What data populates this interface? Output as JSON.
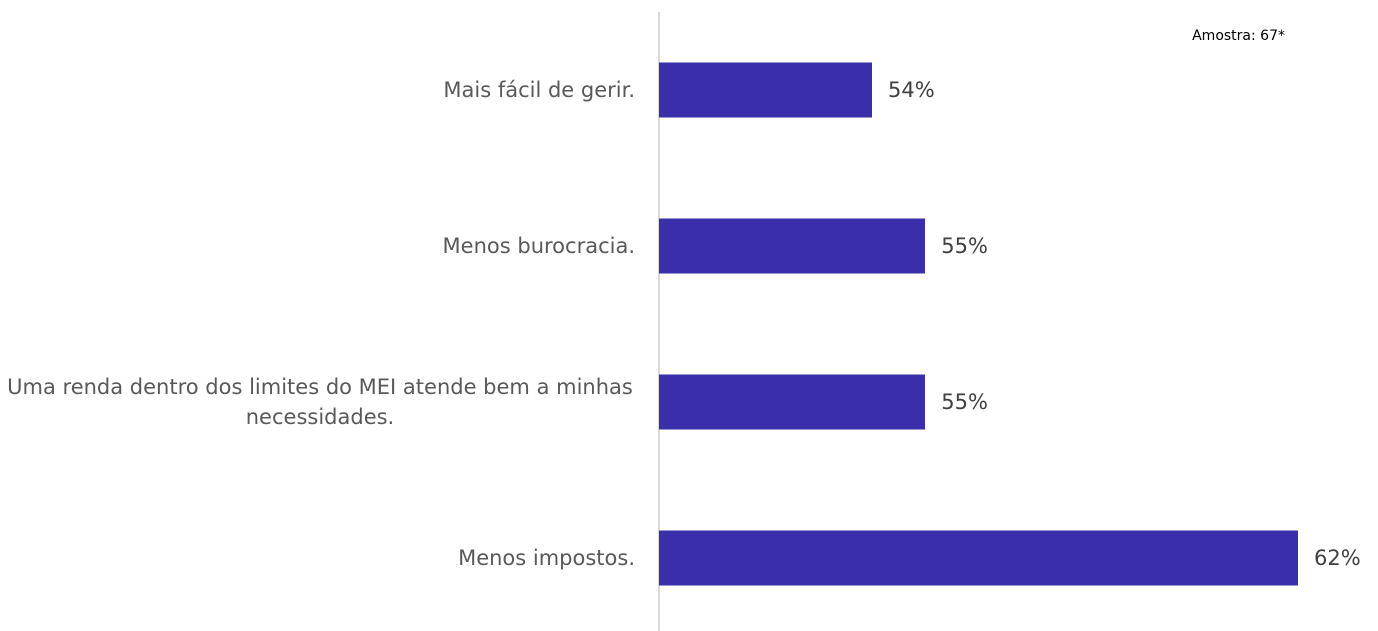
{
  "chart_data": {
    "type": "bar",
    "orientation": "horizontal",
    "annotation": "Amostra: 67*",
    "categories": [
      "Mais fácil de gerir.",
      "Menos burocracia.",
      "Uma renda dentro dos limites do MEI atende bem a minhas necessidades.",
      "Menos impostos."
    ],
    "values": [
      54,
      55,
      55,
      62
    ],
    "value_labels": [
      "54%",
      "55%",
      "55%",
      "62%"
    ],
    "color": "#3a2eaa",
    "xlim": [
      50,
      62
    ]
  }
}
